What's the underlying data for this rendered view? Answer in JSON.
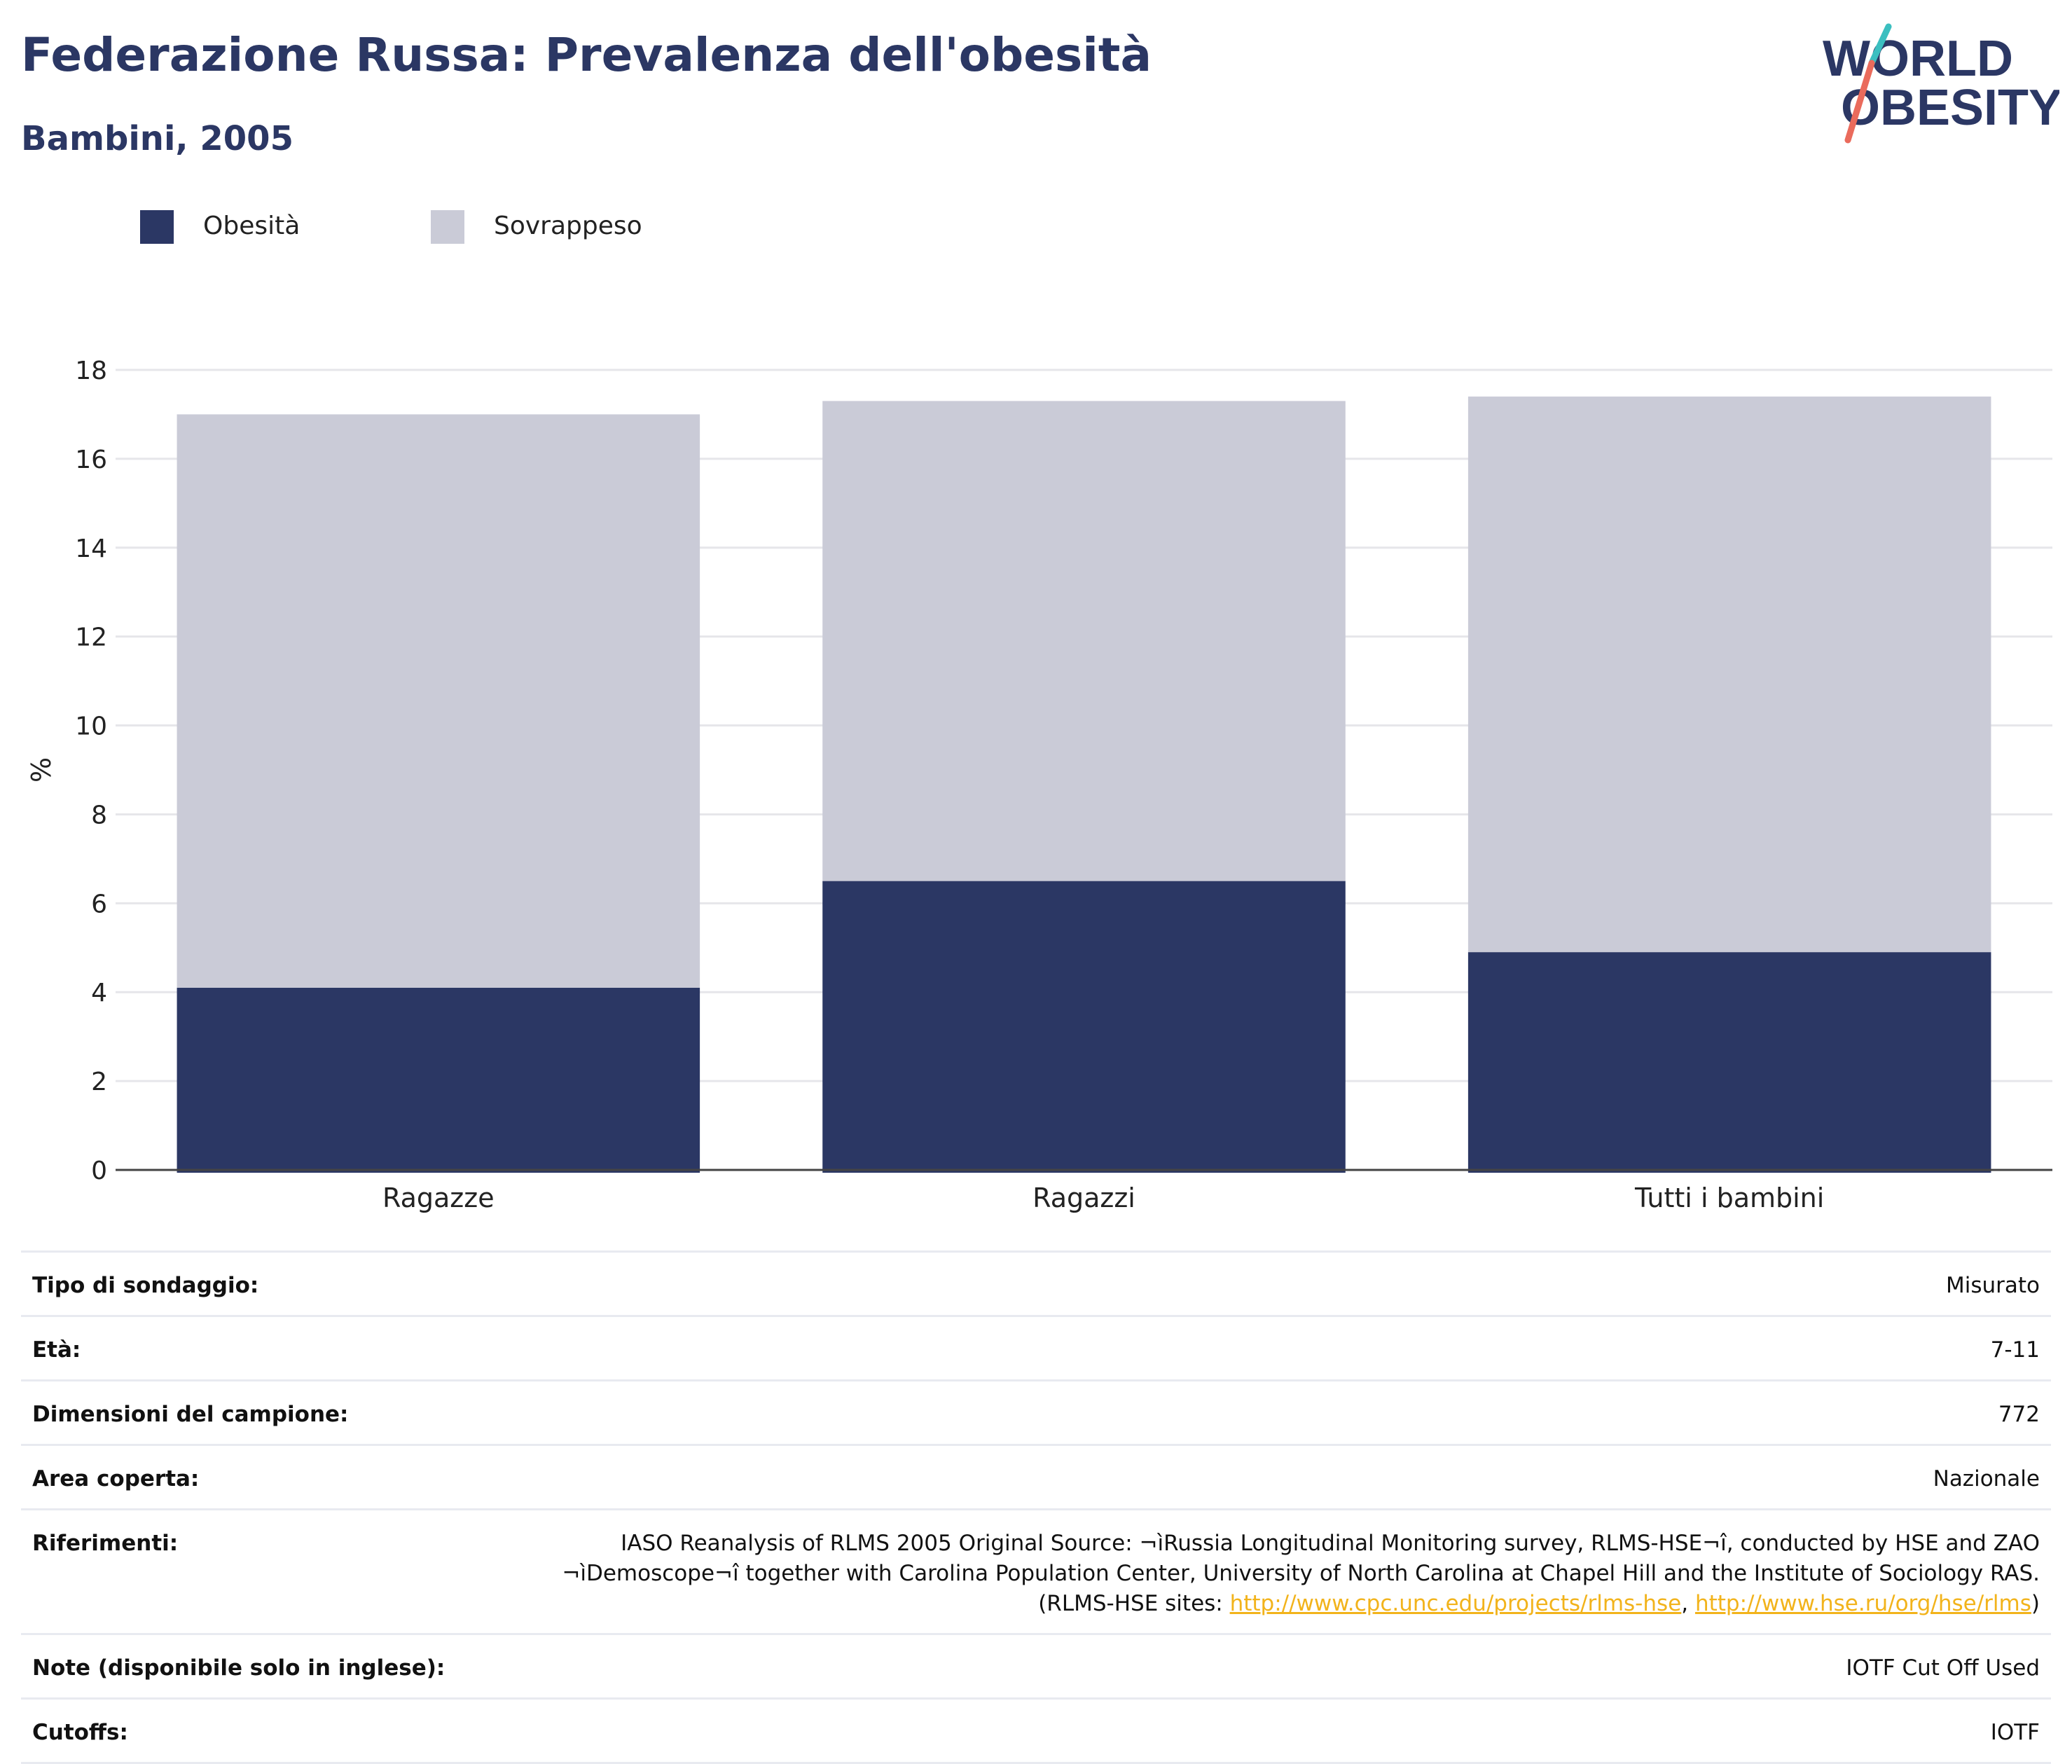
{
  "header": {
    "title": "Federazione Russa: Prevalenza dell'obesità",
    "subtitle": "Bambini, 2005"
  },
  "logo": {
    "line1": "WORLD",
    "line2": "OBESITY"
  },
  "colors": {
    "title": "#2b3764",
    "obesity": "#2b3764",
    "overweight": "#cacbd7",
    "grid": "#e6e6ea",
    "axis": "#444444",
    "link": "#f2b31b",
    "logo_teal": "#3bbfc0",
    "logo_coral": "#ea6b5c"
  },
  "legend": {
    "items": [
      {
        "label": "Obesità",
        "color": "#2b3764"
      },
      {
        "label": "Sovrappeso",
        "color": "#cacbd7"
      }
    ]
  },
  "chart_data": {
    "type": "bar",
    "stacked": true,
    "categories": [
      "Ragazze",
      "Ragazzi",
      "Tutti i bambini"
    ],
    "series": [
      {
        "name": "Obesità",
        "values": [
          4.1,
          6.5,
          4.9
        ]
      },
      {
        "name": "Sovrappeso",
        "values": [
          12.9,
          10.8,
          12.5
        ]
      }
    ],
    "ylabel": "%",
    "xlabel": "",
    "ylim": [
      0,
      18
    ],
    "yticks": [
      0,
      2,
      4,
      6,
      8,
      10,
      12,
      14,
      16,
      18
    ],
    "grid": true,
    "legend_position": "top-left"
  },
  "info": {
    "rows": [
      {
        "label": "Tipo di sondaggio:",
        "value": "Misurato"
      },
      {
        "label": "Età:",
        "value": "7-11"
      },
      {
        "label": "Dimensioni del campione:",
        "value": "772"
      },
      {
        "label": "Area coperta:",
        "value": "Nazionale"
      },
      {
        "label": "Note (disponibile solo in inglese):",
        "value": "IOTF Cut Off Used"
      },
      {
        "label": "Cutoffs:",
        "value": "IOTF"
      }
    ],
    "references": {
      "label": "Riferimenti:",
      "line1": "IASO Reanalysis of RLMS 2005 Original Source: ¬ìRussia Longitudinal Monitoring survey, RLMS-HSE¬î, conducted by HSE and ZAO",
      "line2": "¬ìDemoscope¬î together with Carolina Population Center, University of North Carolina at Chapel Hill and the Institute of Sociology RAS.",
      "line3_prefix": "(RLMS-HSE sites: ",
      "link1": "http://www.cpc.unc.edu/projects/rlms-hse",
      "sep": ", ",
      "link2": "http://www.hse.ru/org/hse/rlms",
      "line3_suffix": ")"
    }
  }
}
